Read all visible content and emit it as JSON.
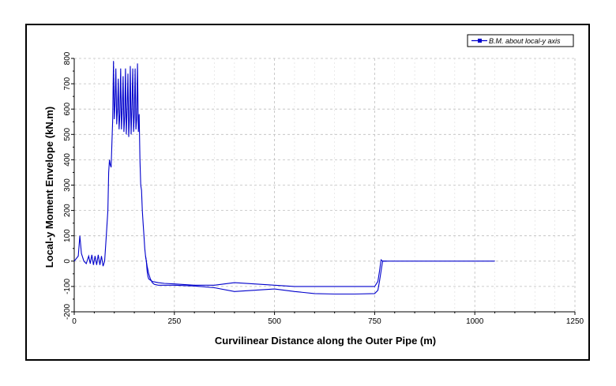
{
  "chart_data": {
    "type": "line",
    "title": "",
    "xlabel": "Curvilinear Distance along the Outer Pipe (m)",
    "ylabel": "Local-y Moment Envelope (kN.m)",
    "xlim": [
      0,
      1250
    ],
    "ylim": [
      -200,
      800
    ],
    "xticks": [
      0,
      250,
      500,
      750,
      1000,
      1250
    ],
    "yticks": [
      -200,
      -100,
      0,
      100,
      200,
      300,
      400,
      500,
      600,
      700,
      800
    ],
    "grid": true,
    "legend_position": "top-right",
    "series": [
      {
        "name": "B.M. about local-y axis",
        "color": "#0000cc",
        "x": [
          0,
          10,
          14,
          18,
          24,
          30,
          36,
          40,
          44,
          48,
          52,
          56,
          60,
          64,
          68,
          72,
          76,
          80,
          84,
          86,
          88,
          90,
          92,
          96,
          98,
          100,
          102,
          104,
          106,
          108,
          110,
          112,
          114,
          116,
          118,
          120,
          122,
          124,
          126,
          128,
          130,
          132,
          134,
          136,
          138,
          140,
          142,
          144,
          146,
          148,
          150,
          152,
          154,
          156,
          158,
          160,
          162,
          164,
          166,
          168,
          170,
          172,
          174,
          176,
          178,
          180,
          182,
          184,
          186,
          190,
          195,
          200,
          210,
          225,
          250,
          300,
          350,
          400,
          450,
          500,
          550,
          600,
          650,
          700,
          750,
          758,
          762,
          766,
          770,
          775,
          780,
          800,
          900,
          1000,
          1050
        ],
        "y": [
          0,
          20,
          100,
          30,
          0,
          -10,
          20,
          -10,
          25,
          -15,
          20,
          -15,
          25,
          -15,
          20,
          -20,
          0,
          100,
          200,
          350,
          400,
          380,
          370,
          560,
          790,
          560,
          620,
          760,
          540,
          600,
          720,
          520,
          580,
          760,
          520,
          600,
          730,
          510,
          570,
          760,
          500,
          600,
          740,
          490,
          570,
          770,
          500,
          600,
          760,
          510,
          580,
          760,
          520,
          560,
          780,
          510,
          580,
          400,
          300,
          280,
          200,
          150,
          100,
          50,
          20,
          0,
          -40,
          -60,
          -70,
          -75,
          -80,
          -82,
          -85,
          -88,
          -90,
          -95,
          -95,
          -85,
          -90,
          -95,
          -100,
          -100,
          -100,
          -100,
          -100,
          -80,
          -40,
          5,
          0,
          0,
          0,
          0,
          0,
          0,
          0
        ],
        "lower_x": [
          178,
          182,
          186,
          190,
          195,
          200,
          210,
          225,
          250,
          300,
          350,
          400,
          450,
          500,
          550,
          600,
          650,
          700,
          750,
          758,
          762,
          766,
          770,
          775,
          780
        ],
        "lower_y": [
          20,
          -20,
          -50,
          -70,
          -85,
          -92,
          -95,
          -95,
          -95,
          -98,
          -105,
          -120,
          -115,
          -110,
          -120,
          -128,
          -130,
          -130,
          -128,
          -115,
          -80,
          -40,
          0,
          0,
          0
        ]
      }
    ]
  }
}
